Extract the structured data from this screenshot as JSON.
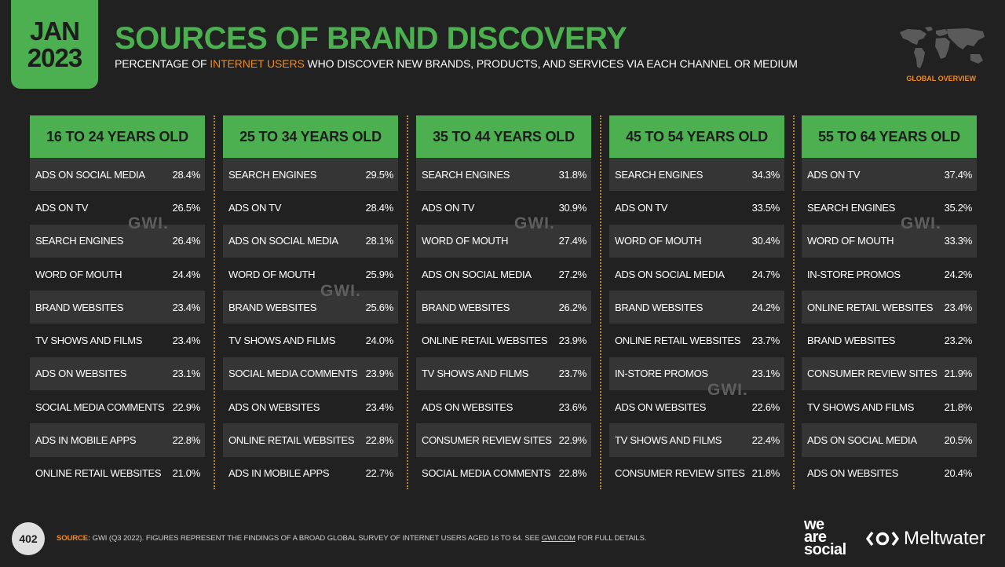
{
  "badge": {
    "month": "JAN",
    "year": "2023"
  },
  "title": "SOURCES OF BRAND DISCOVERY",
  "subtitle": {
    "pre": "PERCENTAGE OF ",
    "highlight": "INTERNET USERS",
    "post": " WHO DISCOVER NEW BRANDS, PRODUCTS, AND SERVICES VIA EACH CHANNEL OR MEDIUM"
  },
  "global_tag": "GLOBAL OVERVIEW",
  "colors": {
    "accent": "#4caf50",
    "highlight": "#f58a1f",
    "background": "#212121"
  },
  "watermark": "GWI.",
  "columns": [
    {
      "header": "16 TO 24 YEARS OLD",
      "rows": [
        {
          "label": "ADS ON SOCIAL MEDIA",
          "value": "28.4%"
        },
        {
          "label": "ADS ON TV",
          "value": "26.5%"
        },
        {
          "label": "SEARCH ENGINES",
          "value": "26.4%"
        },
        {
          "label": "WORD OF MOUTH",
          "value": "24.4%"
        },
        {
          "label": "BRAND WEBSITES",
          "value": "23.4%"
        },
        {
          "label": "TV SHOWS AND FILMS",
          "value": "23.4%"
        },
        {
          "label": "ADS ON WEBSITES",
          "value": "23.1%"
        },
        {
          "label": "SOCIAL MEDIA COMMENTS",
          "value": "22.9%"
        },
        {
          "label": "ADS IN MOBILE APPS",
          "value": "22.8%"
        },
        {
          "label": "ONLINE RETAIL WEBSITES",
          "value": "21.0%"
        }
      ]
    },
    {
      "header": "25 TO 34 YEARS OLD",
      "rows": [
        {
          "label": "SEARCH ENGINES",
          "value": "29.5%"
        },
        {
          "label": "ADS ON TV",
          "value": "28.4%"
        },
        {
          "label": "ADS ON SOCIAL MEDIA",
          "value": "28.1%"
        },
        {
          "label": "WORD OF MOUTH",
          "value": "25.9%"
        },
        {
          "label": "BRAND WEBSITES",
          "value": "25.6%"
        },
        {
          "label": "TV SHOWS AND FILMS",
          "value": "24.0%"
        },
        {
          "label": "SOCIAL MEDIA COMMENTS",
          "value": "23.9%"
        },
        {
          "label": "ADS ON WEBSITES",
          "value": "23.4%"
        },
        {
          "label": "ONLINE RETAIL WEBSITES",
          "value": "22.8%"
        },
        {
          "label": "ADS IN MOBILE APPS",
          "value": "22.7%"
        }
      ]
    },
    {
      "header": "35 TO 44 YEARS OLD",
      "rows": [
        {
          "label": "SEARCH ENGINES",
          "value": "31.8%"
        },
        {
          "label": "ADS ON TV",
          "value": "30.9%"
        },
        {
          "label": "WORD OF MOUTH",
          "value": "27.4%"
        },
        {
          "label": "ADS ON SOCIAL MEDIA",
          "value": "27.2%"
        },
        {
          "label": "BRAND WEBSITES",
          "value": "26.2%"
        },
        {
          "label": "ONLINE RETAIL WEBSITES",
          "value": "23.9%"
        },
        {
          "label": "TV SHOWS AND FILMS",
          "value": "23.7%"
        },
        {
          "label": "ADS ON WEBSITES",
          "value": "23.6%"
        },
        {
          "label": "CONSUMER REVIEW SITES",
          "value": "22.9%"
        },
        {
          "label": "SOCIAL MEDIA COMMENTS",
          "value": "22.8%"
        }
      ]
    },
    {
      "header": "45 TO 54 YEARS OLD",
      "rows": [
        {
          "label": "SEARCH ENGINES",
          "value": "34.3%"
        },
        {
          "label": "ADS ON TV",
          "value": "33.5%"
        },
        {
          "label": "WORD OF MOUTH",
          "value": "30.4%"
        },
        {
          "label": "ADS ON SOCIAL MEDIA",
          "value": "24.7%"
        },
        {
          "label": "BRAND WEBSITES",
          "value": "24.2%"
        },
        {
          "label": "ONLINE RETAIL WEBSITES",
          "value": "23.7%"
        },
        {
          "label": "IN-STORE PROMOS",
          "value": "23.1%"
        },
        {
          "label": "ADS ON WEBSITES",
          "value": "22.6%"
        },
        {
          "label": "TV SHOWS AND FILMS",
          "value": "22.4%"
        },
        {
          "label": "CONSUMER REVIEW SITES",
          "value": "21.8%"
        }
      ]
    },
    {
      "header": "55 TO 64 YEARS OLD",
      "rows": [
        {
          "label": "ADS ON TV",
          "value": "37.4%"
        },
        {
          "label": "SEARCH ENGINES",
          "value": "35.2%"
        },
        {
          "label": "WORD OF MOUTH",
          "value": "33.3%"
        },
        {
          "label": "IN-STORE PROMOS",
          "value": "24.2%"
        },
        {
          "label": "ONLINE RETAIL WEBSITES",
          "value": "23.4%"
        },
        {
          "label": "BRAND WEBSITES",
          "value": "23.2%"
        },
        {
          "label": "CONSUMER REVIEW SITES",
          "value": "21.9%"
        },
        {
          "label": "TV SHOWS AND FILMS",
          "value": "21.8%"
        },
        {
          "label": "ADS ON SOCIAL MEDIA",
          "value": "20.5%"
        },
        {
          "label": "ADS ON WEBSITES",
          "value": "20.4%"
        }
      ]
    }
  ],
  "footer": {
    "page_number": "402",
    "source_label": "SOURCE:",
    "source_text": " GWI (Q3 2022). FIGURES REPRESENT THE FINDINGS OF A BROAD GLOBAL SURVEY OF INTERNET USERS AGED 16 TO 64. SEE ",
    "source_link": "GWI.COM",
    "source_tail": " FOR FULL DETAILS.",
    "logo_was": [
      "we",
      "are",
      "social"
    ],
    "logo_meltwater": "Meltwater"
  }
}
